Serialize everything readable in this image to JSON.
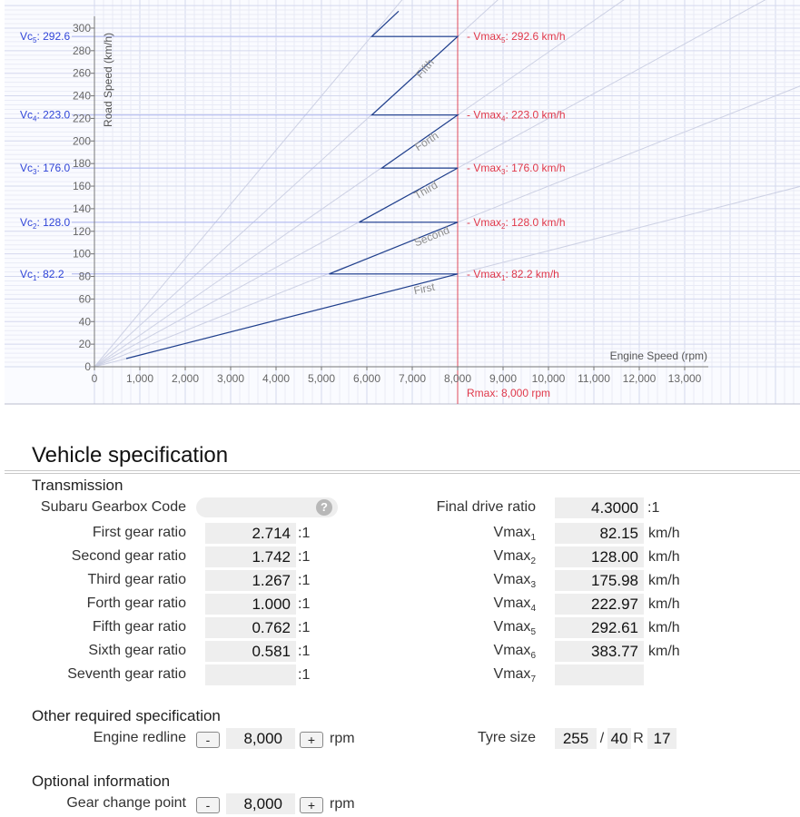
{
  "chart_data": {
    "type": "line",
    "xlabel": "Engine Speed (rpm)",
    "ylabel": "Road Speed (km/h)",
    "xlim": [
      0,
      15500
    ],
    "ylim": [
      0,
      315
    ],
    "x_ticks": [
      "0",
      "1,000",
      "2,000",
      "3,000",
      "4,000",
      "5,000",
      "6,000",
      "7,000",
      "8,000",
      "9,000",
      "10,000",
      "11,000",
      "12,000",
      "13,000"
    ],
    "y_ticks": [
      "0",
      "20",
      "40",
      "60",
      "80",
      "100",
      "120",
      "140",
      "160",
      "180",
      "200",
      "220",
      "240",
      "260",
      "280",
      "300"
    ],
    "grid": true,
    "rmax_label": "Rmax: 8,000 rpm",
    "rmax_rpm": 8000,
    "gears": [
      {
        "name": "First",
        "vmax": 82.2,
        "vmax_label": "Vmax",
        "vmax_sub": "1",
        "vmax_text": ": 82.2 km/h",
        "vc_label": "Vc",
        "vc_sub": "1",
        "vc_text": ": 82.2"
      },
      {
        "name": "Second",
        "vmax": 128.0,
        "vmax_label": "Vmax",
        "vmax_sub": "2",
        "vmax_text": ": 128.0 km/h",
        "vc_label": "Vc",
        "vc_sub": "2",
        "vc_text": ": 128.0"
      },
      {
        "name": "Third",
        "vmax": 176.0,
        "vmax_label": "Vmax",
        "vmax_sub": "3",
        "vmax_text": ": 176.0 km/h",
        "vc_label": "Vc",
        "vc_sub": "3",
        "vc_text": ": 176.0"
      },
      {
        "name": "Forth",
        "vmax": 223.0,
        "vmax_label": "Vmax",
        "vmax_sub": "4",
        "vmax_text": ": 223.0 km/h",
        "vc_label": "Vc",
        "vc_sub": "4",
        "vc_text": ": 223.0"
      },
      {
        "name": "Fifth",
        "vmax": 292.6,
        "vmax_label": "Vmax",
        "vmax_sub": "5",
        "vmax_text": ": 292.6 km/h",
        "vc_label": "Vc",
        "vc_sub": "5",
        "vc_text": ": 292.6"
      },
      {
        "name": "",
        "vmax": 383.77
      }
    ],
    "sawtooth": [
      [
        700,
        7.2
      ],
      [
        8000,
        82.2
      ],
      [
        5170,
        82.2
      ],
      [
        8000,
        128.0
      ],
      [
        5830,
        128.0
      ],
      [
        8000,
        176.0
      ],
      [
        6330,
        176.0
      ],
      [
        8000,
        223.0
      ],
      [
        6110,
        223.0
      ],
      [
        8000,
        292.6
      ],
      [
        6110,
        292.6
      ],
      [
        6700,
        315
      ]
    ]
  },
  "spec": {
    "title": "Vehicle specification",
    "transmission": {
      "heading": "Transmission",
      "gearbox_code_label": "Subaru Gearbox Code",
      "gearbox_code_value": "",
      "help_icon": "?",
      "gears": [
        {
          "label": "First gear ratio",
          "value": "2.714",
          "unit": ":1"
        },
        {
          "label": "Second gear ratio",
          "value": "1.742",
          "unit": ":1"
        },
        {
          "label": "Third gear ratio",
          "value": "1.267",
          "unit": ":1"
        },
        {
          "label": "Forth gear ratio",
          "value": "1.000",
          "unit": ":1"
        },
        {
          "label": "Fifth gear ratio",
          "value": "0.762",
          "unit": ":1"
        },
        {
          "label": "Sixth gear ratio",
          "value": "0.581",
          "unit": ":1"
        },
        {
          "label": "Seventh gear ratio",
          "value": "",
          "unit": ":1"
        }
      ],
      "final_drive_label": "Final drive ratio",
      "final_drive_value": "4.3000",
      "final_drive_unit": ":1",
      "vmax": [
        {
          "label": "Vmax",
          "sub": "1",
          "value": "82.15",
          "unit": "km/h"
        },
        {
          "label": "Vmax",
          "sub": "2",
          "value": "128.00",
          "unit": "km/h"
        },
        {
          "label": "Vmax",
          "sub": "3",
          "value": "175.98",
          "unit": "km/h"
        },
        {
          "label": "Vmax",
          "sub": "4",
          "value": "222.97",
          "unit": "km/h"
        },
        {
          "label": "Vmax",
          "sub": "5",
          "value": "292.61",
          "unit": "km/h"
        },
        {
          "label": "Vmax",
          "sub": "6",
          "value": "383.77",
          "unit": "km/h"
        },
        {
          "label": "Vmax",
          "sub": "7",
          "value": "",
          "unit": ""
        }
      ]
    },
    "other": {
      "heading": "Other required specification",
      "redline_label": "Engine redline",
      "redline_value": "8,000",
      "redline_unit": "rpm",
      "minus": "-",
      "plus": "+",
      "tyre_label": "Tyre size",
      "tyre_width": "255",
      "tyre_sep": "/",
      "tyre_aspect": "40",
      "tyre_r": "R",
      "tyre_rim": "17"
    },
    "optional": {
      "heading": "Optional information",
      "gear_change_label": "Gear change point",
      "gear_change_value": "8,000",
      "gear_change_unit": "rpm"
    }
  }
}
